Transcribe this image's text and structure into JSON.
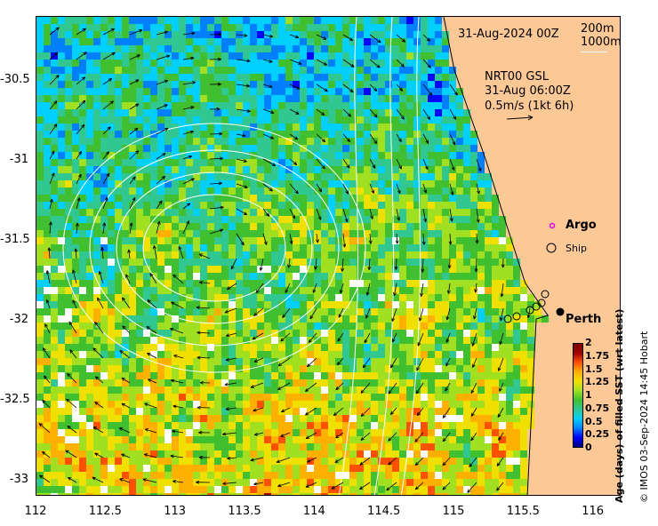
{
  "map": {
    "date_label": "31-Aug-2024 00Z",
    "depth_legend": [
      "200m",
      "1000m"
    ],
    "current_info": [
      "NRT00 GSL",
      "31-Aug 06:00Z",
      "0.5m/s (1kt 6h)"
    ],
    "argo_label": "Argo",
    "ship_label": "Ship",
    "city_label": "Perth",
    "lon_ticks": [
      "112",
      "112.5",
      "113",
      "113.5",
      "114",
      "114.5",
      "115",
      "115.5",
      "116"
    ],
    "lat_ticks": [
      "-30.5",
      "-31",
      "-31.5",
      "-32",
      "-32.5",
      "-33"
    ],
    "lon_range": [
      112,
      116.2
    ],
    "lat_range": [
      -33.1,
      -30.1
    ],
    "city_lonlat": [
      115.86,
      -31.95
    ],
    "colors": {
      "land": "#fcc896",
      "argo": "#e000e0"
    }
  },
  "colorbar": {
    "title": "Age (days) of filled SST (wrt latest)",
    "ticks": [
      "2",
      "1.75",
      "1.5",
      "1.25",
      "1",
      "0.75",
      "0.5",
      "0.25",
      "0"
    ],
    "colors": [
      "#00007f",
      "#0000ff",
      "#0080ff",
      "#00d0ff",
      "#30c890",
      "#40c030",
      "#a0e020",
      "#f0e000",
      "#ffb000",
      "#ff5000",
      "#a00000",
      "#7f0000"
    ]
  },
  "credit": "© IMOS 03-Sep-2024 14:45 Hobart"
}
